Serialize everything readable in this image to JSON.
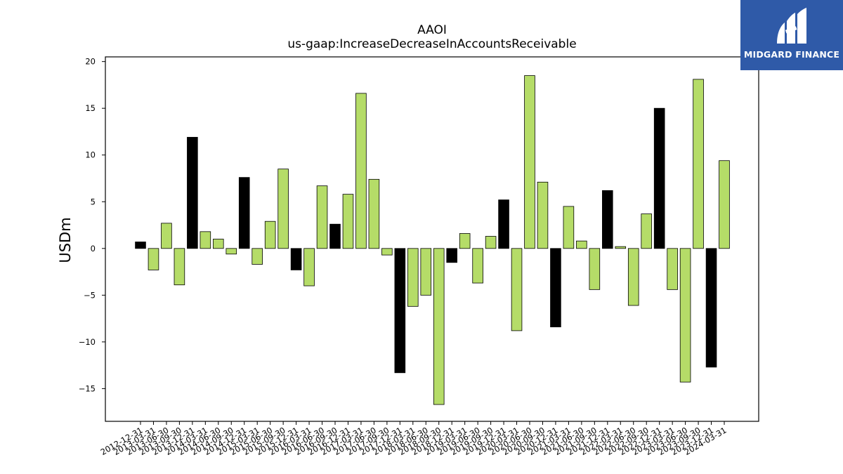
{
  "chart_data": {
    "type": "bar",
    "title": "AAOI",
    "subtitle": "us-gaap:IncreaseDecreaseInAccountsReceivable",
    "xlabel": "",
    "ylabel": "USDm",
    "ylim": [
      -18.5,
      20.5
    ],
    "yticks": [
      -15,
      -10,
      -5,
      0,
      5,
      10,
      15,
      20
    ],
    "grid": false,
    "colors": {
      "quarterly": "#b5dc68",
      "annual": "#000000",
      "edge": "#000000"
    },
    "categories": [
      "2012-12-31",
      "2013-03-31",
      "2013-06-30",
      "2013-09-30",
      "2013-12-31",
      "2014-03-31",
      "2014-06-30",
      "2014-09-30",
      "2014-12-31",
      "2015-03-31",
      "2015-06-30",
      "2015-09-30",
      "2015-12-31",
      "2016-03-31",
      "2016-06-30",
      "2016-09-30",
      "2016-12-31",
      "2017-03-31",
      "2017-06-30",
      "2017-09-30",
      "2017-12-31",
      "2018-03-31",
      "2018-06-30",
      "2018-09-30",
      "2018-12-31",
      "2019-03-31",
      "2019-06-30",
      "2019-09-30",
      "2019-12-31",
      "2020-03-31",
      "2020-06-30",
      "2020-09-30",
      "2020-12-31",
      "2021-03-31",
      "2021-06-30",
      "2021-09-30",
      "2021-12-31",
      "2022-03-31",
      "2022-06-30",
      "2022-09-30",
      "2022-12-31",
      "2023-03-31",
      "2023-06-30",
      "2023-09-30",
      "2023-12-31",
      "2024-03-31"
    ],
    "values": [
      0.7,
      -2.3,
      2.7,
      -3.9,
      11.9,
      1.8,
      1.0,
      -0.6,
      7.6,
      -1.7,
      2.9,
      8.5,
      -2.3,
      -4.0,
      6.7,
      2.6,
      5.8,
      16.6,
      7.4,
      -0.7,
      -13.3,
      -6.2,
      -5.0,
      -16.7,
      -1.5,
      1.6,
      -3.7,
      1.3,
      5.2,
      -8.8,
      18.5,
      7.1,
      -8.4,
      4.5,
      0.8,
      -4.4,
      6.2,
      0.2,
      -6.1,
      3.7,
      15.0,
      -4.4,
      -14.3,
      18.1,
      -12.7,
      9.4
    ],
    "annual": [
      true,
      false,
      false,
      false,
      true,
      false,
      false,
      false,
      true,
      false,
      false,
      false,
      true,
      false,
      false,
      true,
      false,
      false,
      false,
      false,
      true,
      false,
      false,
      false,
      true,
      false,
      false,
      false,
      true,
      false,
      false,
      false,
      true,
      false,
      false,
      false,
      true,
      false,
      false,
      false,
      true,
      false,
      false,
      false,
      true,
      false
    ]
  },
  "logo": {
    "text": "MIDGARD FINANCE",
    "color": "#2f5aa8"
  }
}
